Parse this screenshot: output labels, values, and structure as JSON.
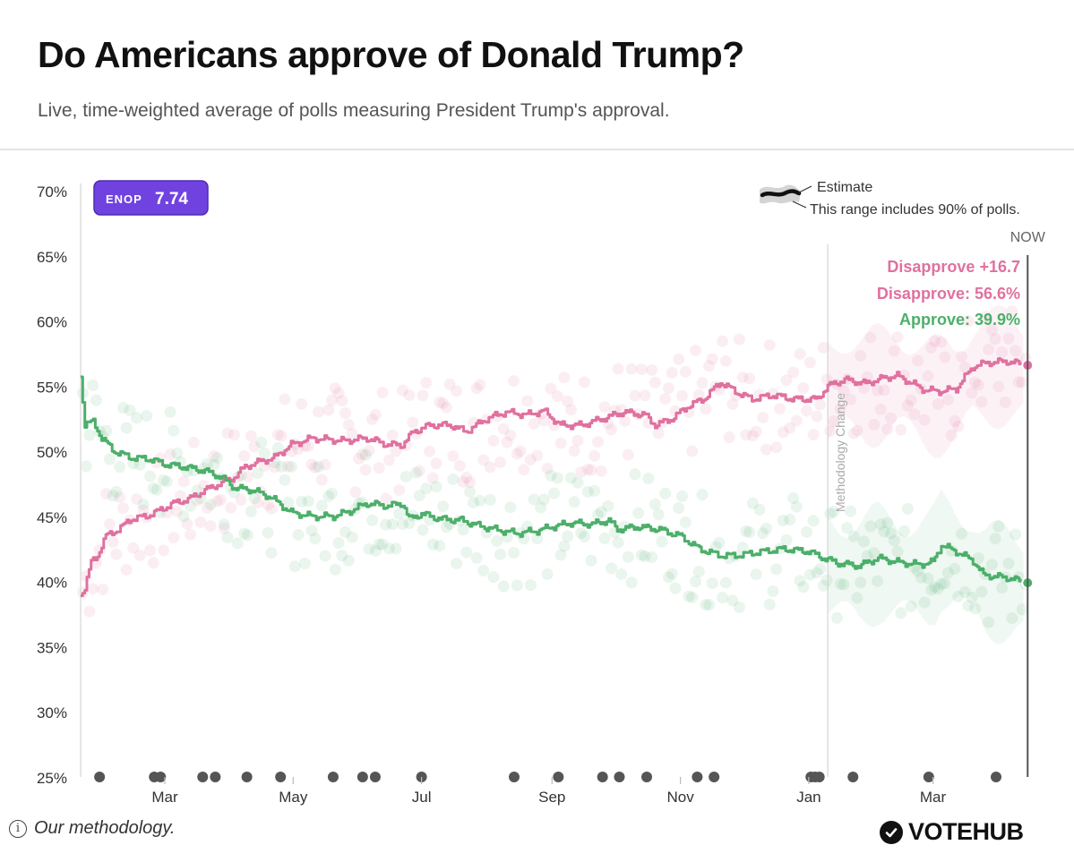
{
  "header": {
    "title": "Do Americans approve of Donald Trump?",
    "subtitle": "Live, time-weighted average of polls measuring President Trump's approval."
  },
  "footer": {
    "methodology_label": "Our methodology.",
    "brand": "VOTEHUB"
  },
  "colors": {
    "approve": "#4caf6a",
    "disapprove": "#e0719f",
    "enop_badge": "#7042e0",
    "event_dot": "#555555"
  },
  "chart_data": {
    "type": "line",
    "title": "Do Americans approve of Donald Trump?",
    "ylim": [
      25,
      70
    ],
    "y_ticks": [
      "70%",
      "65%",
      "60%",
      "55%",
      "50%",
      "45%",
      "40%",
      "35%",
      "30%",
      "25%"
    ],
    "x_range": [
      "2025-01-20",
      "2026-04-20"
    ],
    "x_ticks": [
      {
        "label": "Mar",
        "date": "2025-03-01"
      },
      {
        "label": "May",
        "date": "2025-05-01"
      },
      {
        "label": "Jul",
        "date": "2025-07-01"
      },
      {
        "label": "Sep",
        "date": "2025-09-01"
      },
      {
        "label": "Nov",
        "date": "2025-11-01"
      },
      {
        "label": "Jan",
        "date": "2026-01-01"
      },
      {
        "label": "Mar",
        "date": "2026-03-01"
      }
    ],
    "enop": {
      "label": "ENOP",
      "value": "7.74"
    },
    "legend": {
      "estimate_label": "Estimate",
      "range_label": "This range includes 90% of polls.",
      "placement": "top-right"
    },
    "now_label": "NOW",
    "annotation": {
      "label": "Methodology Change",
      "date": "2026-01-10"
    },
    "summary": {
      "net": "Disapprove +16.7",
      "disapprove": "Disapprove: 56.6%",
      "approve": "Approve: 39.9%"
    },
    "series": [
      {
        "name": "Disapprove",
        "color": "#e0719f",
        "points": [
          [
            "2025-01-20",
            39.0
          ],
          [
            "2025-01-22",
            39.5
          ],
          [
            "2025-01-25",
            41.5
          ],
          [
            "2025-01-28",
            42.0
          ],
          [
            "2025-02-01",
            43.5
          ],
          [
            "2025-02-07",
            44.0
          ],
          [
            "2025-02-13",
            44.8
          ],
          [
            "2025-02-20",
            45.0
          ],
          [
            "2025-02-27",
            45.5
          ],
          [
            "2025-03-05",
            46.0
          ],
          [
            "2025-03-12",
            46.3
          ],
          [
            "2025-03-20",
            47.0
          ],
          [
            "2025-03-27",
            47.5
          ],
          [
            "2025-04-03",
            48.0
          ],
          [
            "2025-04-08",
            48.8
          ],
          [
            "2025-04-15",
            49.2
          ],
          [
            "2025-04-22",
            49.5
          ],
          [
            "2025-04-30",
            50.5
          ],
          [
            "2025-05-10",
            51.0
          ],
          [
            "2025-05-25",
            50.8
          ],
          [
            "2025-06-05",
            51.0
          ],
          [
            "2025-06-15",
            50.5
          ],
          [
            "2025-06-22",
            50.5
          ],
          [
            "2025-06-27",
            51.5
          ],
          [
            "2025-07-05",
            52.0
          ],
          [
            "2025-07-15",
            52.0
          ],
          [
            "2025-07-22",
            51.5
          ],
          [
            "2025-08-01",
            52.5
          ],
          [
            "2025-08-10",
            53.0
          ],
          [
            "2025-08-20",
            52.8
          ],
          [
            "2025-08-28",
            53.1
          ],
          [
            "2025-09-05",
            52.0
          ],
          [
            "2025-09-15",
            52.0
          ],
          [
            "2025-09-25",
            52.5
          ],
          [
            "2025-10-05",
            53.0
          ],
          [
            "2025-10-15",
            52.8
          ],
          [
            "2025-10-20",
            52.0
          ],
          [
            "2025-10-28",
            52.5
          ],
          [
            "2025-11-05",
            53.5
          ],
          [
            "2025-11-12",
            54.0
          ],
          [
            "2025-11-20",
            55.3
          ],
          [
            "2025-11-28",
            54.5
          ],
          [
            "2025-12-05",
            54.0
          ],
          [
            "2025-12-15",
            54.3
          ],
          [
            "2025-12-25",
            54.0
          ],
          [
            "2026-01-05",
            54.0
          ],
          [
            "2026-01-10",
            55.0
          ],
          [
            "2026-01-18",
            55.5
          ],
          [
            "2026-01-28",
            55.2
          ],
          [
            "2026-02-05",
            55.6
          ],
          [
            "2026-02-12",
            55.8
          ],
          [
            "2026-02-18",
            55.3
          ],
          [
            "2026-02-25",
            54.7
          ],
          [
            "2026-03-05",
            54.6
          ],
          [
            "2026-03-12",
            54.8
          ],
          [
            "2026-03-20",
            56.5
          ],
          [
            "2026-03-27",
            56.8
          ],
          [
            "2026-04-05",
            56.9
          ],
          [
            "2026-04-15",
            56.6
          ]
        ]
      },
      {
        "name": "Approve",
        "color": "#4caf6a",
        "points": [
          [
            "2025-01-20",
            55.8
          ],
          [
            "2025-01-22",
            52.0
          ],
          [
            "2025-01-26",
            52.3
          ],
          [
            "2025-01-30",
            51.0
          ],
          [
            "2025-02-05",
            50.0
          ],
          [
            "2025-02-13",
            49.5
          ],
          [
            "2025-02-22",
            49.4
          ],
          [
            "2025-03-01",
            49.0
          ],
          [
            "2025-03-10",
            48.8
          ],
          [
            "2025-03-20",
            48.5
          ],
          [
            "2025-03-28",
            48.0
          ],
          [
            "2025-04-03",
            47.2
          ],
          [
            "2025-04-12",
            47.0
          ],
          [
            "2025-04-20",
            46.5
          ],
          [
            "2025-04-30",
            45.3
          ],
          [
            "2025-05-10",
            45.0
          ],
          [
            "2025-05-20",
            45.0
          ],
          [
            "2025-05-28",
            45.4
          ],
          [
            "2025-06-05",
            46.0
          ],
          [
            "2025-06-15",
            45.8
          ],
          [
            "2025-06-22",
            46.0
          ],
          [
            "2025-06-25",
            44.8
          ],
          [
            "2025-07-01",
            45.2
          ],
          [
            "2025-07-10",
            44.8
          ],
          [
            "2025-07-20",
            44.7
          ],
          [
            "2025-07-28",
            44.3
          ],
          [
            "2025-08-05",
            44.0
          ],
          [
            "2025-08-15",
            43.7
          ],
          [
            "2025-08-25",
            43.9
          ],
          [
            "2025-09-01",
            44.2
          ],
          [
            "2025-09-10",
            44.5
          ],
          [
            "2025-09-20",
            44.4
          ],
          [
            "2025-09-28",
            44.7
          ],
          [
            "2025-10-02",
            44.0
          ],
          [
            "2025-10-12",
            44.2
          ],
          [
            "2025-10-22",
            44.0
          ],
          [
            "2025-11-01",
            43.5
          ],
          [
            "2025-11-10",
            42.5
          ],
          [
            "2025-11-20",
            42.0
          ],
          [
            "2025-11-28",
            42.0
          ],
          [
            "2025-12-10",
            42.3
          ],
          [
            "2025-12-20",
            42.5
          ],
          [
            "2026-01-01",
            42.3
          ],
          [
            "2026-01-08",
            41.8
          ],
          [
            "2026-01-15",
            41.4
          ],
          [
            "2026-01-25",
            41.2
          ],
          [
            "2026-02-03",
            41.8
          ],
          [
            "2026-02-12",
            41.5
          ],
          [
            "2026-02-22",
            41.3
          ],
          [
            "2026-03-01",
            41.5
          ],
          [
            "2026-03-05",
            42.8
          ],
          [
            "2026-03-12",
            42.3
          ],
          [
            "2026-03-20",
            41.6
          ],
          [
            "2026-03-25",
            40.5
          ],
          [
            "2026-04-05",
            40.3
          ],
          [
            "2026-04-15",
            39.9
          ]
        ]
      }
    ],
    "events": [
      "2025-01-29",
      "2025-02-24",
      "2025-02-27",
      "2025-03-19",
      "2025-03-25",
      "2025-04-09",
      "2025-04-25",
      "2025-05-20",
      "2025-06-03",
      "2025-06-09",
      "2025-07-01",
      "2025-08-14",
      "2025-09-04",
      "2025-09-25",
      "2025-10-03",
      "2025-10-16",
      "2025-11-09",
      "2025-11-17",
      "2026-01-02",
      "2026-01-04",
      "2026-01-06",
      "2026-01-22",
      "2026-02-27",
      "2026-03-31"
    ]
  }
}
